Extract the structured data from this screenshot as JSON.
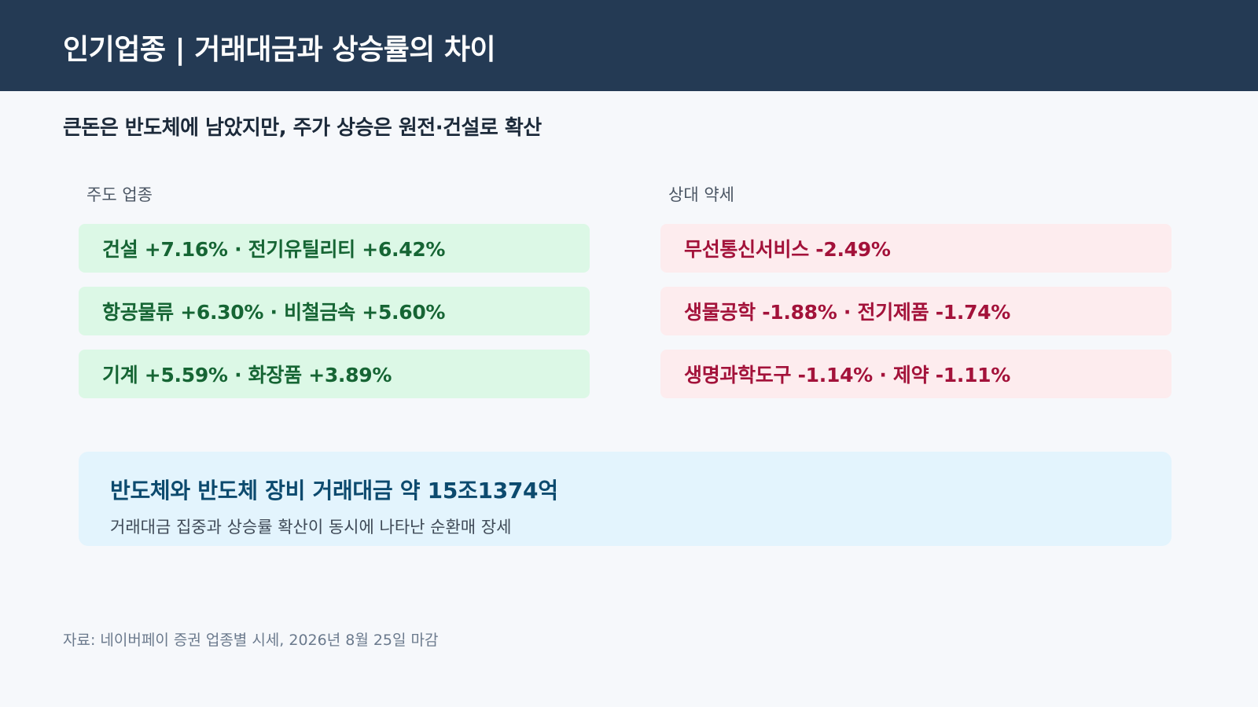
{
  "header": {
    "title": "인기업종 | 거래대금과 상승률의 차이"
  },
  "subtitle": "큰돈은 반도체에 남았지만, 주가 상승은 원전·건설로 확산",
  "leading": {
    "label": "주도 업종",
    "rows": [
      "건설 +7.16% · 전기유틸리티 +6.42%",
      "항공물류 +6.30% · 비철금속 +5.60%",
      "기계 +5.59% · 화장품 +3.89%"
    ]
  },
  "lagging": {
    "label": "상대 약세",
    "rows": [
      "무선통신서비스 -2.49%",
      "생물공학 -1.88% · 전기제품 -1.74%",
      "생명과학도구 -1.14% · 제약 -1.11%"
    ]
  },
  "callout": {
    "title": "반도체와 반도체 장비 거래대금 약 15조1374억",
    "desc": "거래대금 집중과 상승률 확산이 동시에 나타난 순환매 장세"
  },
  "footer": "자료: 네이버페이 증권 업종별 시세, 2026년 8월 25일 마감",
  "colors": {
    "header_bg": "#243a54",
    "up_bg": "#dcf8e6",
    "up_text": "#166534",
    "down_bg": "#fdecee",
    "down_text": "#a3123a",
    "callout_bg": "#e3f4fd",
    "callout_title": "#0c4a6e"
  }
}
